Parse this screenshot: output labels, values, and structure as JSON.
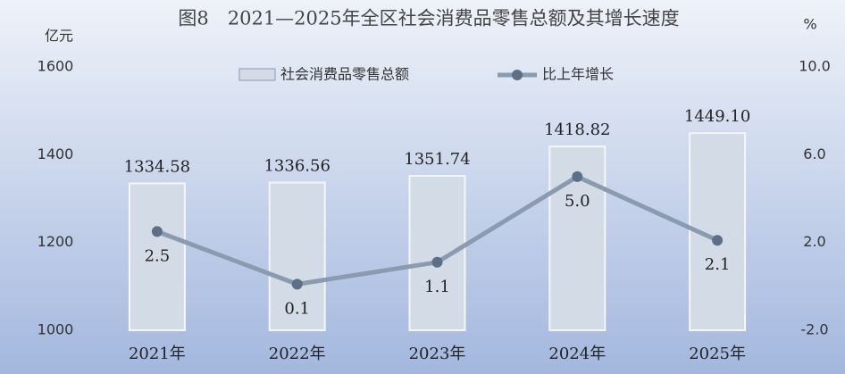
{
  "chart_data": {
    "type": "bar",
    "title": "图8　2021—2025年全区社会消费品零售总额及其增长速度",
    "y_label": "亿元",
    "y2_label": "%",
    "categories": [
      "2021年",
      "2022年",
      "2023年",
      "2024年",
      "2025年"
    ],
    "series": [
      {
        "name": "社会消费品零售总额",
        "type": "bar",
        "color": "#d3dbe6",
        "values": [
          1334.58,
          1336.56,
          1351.74,
          1418.82,
          1449.1
        ],
        "value_labels": [
          "1334.58",
          "1336.56",
          "1351.74",
          "1418.82",
          "1449.10"
        ]
      },
      {
        "name": "比上年增长",
        "type": "line",
        "axis": "y2",
        "color": "#8a9bb0",
        "marker_color": "#5b6f86",
        "values": [
          2.5,
          0.1,
          1.1,
          5.0,
          2.1
        ],
        "value_labels": [
          "2.5",
          "0.1",
          "1.1",
          "5.0",
          "2.1"
        ]
      }
    ],
    "ylim": [
      1000,
      1600
    ],
    "yticks": [
      1000,
      1200,
      1400,
      1600
    ],
    "y2lim": [
      -2,
      10
    ],
    "y2ticks": [
      {
        "value": -2,
        "label": "-2.0"
      },
      {
        "value": 2,
        "label": "2.0"
      },
      {
        "value": 6,
        "label": "6.0"
      },
      {
        "value": 10,
        "label": "10.0"
      }
    ],
    "legend": "top"
  }
}
